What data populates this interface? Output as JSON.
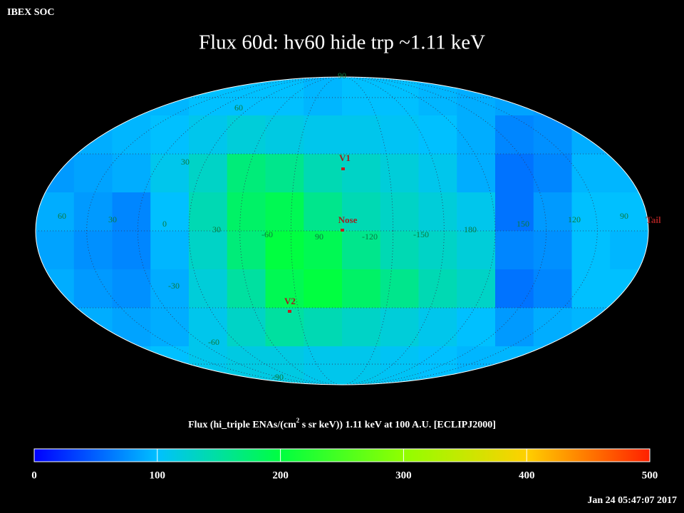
{
  "header": {
    "label": "IBEX SOC",
    "title": "Flux   60d: hv60 hide trp ~1.11 keV"
  },
  "map": {
    "grid_labels": [
      "90",
      "60",
      "30",
      "60",
      "30",
      "0",
      "30",
      "-60",
      "90",
      "-120",
      "-150",
      "180",
      "150",
      "120",
      "90",
      "-30",
      "-60",
      "-90"
    ],
    "markers": [
      {
        "label": "V1"
      },
      {
        "label": "Nose"
      },
      {
        "label": "V2"
      },
      {
        "label": "Tail"
      }
    ],
    "flux_grid": [
      [
        90,
        90,
        95,
        95,
        100,
        100,
        100,
        95,
        100,
        100,
        95,
        90,
        85,
        80,
        85,
        90
      ],
      [
        85,
        90,
        95,
        100,
        110,
        120,
        115,
        110,
        110,
        105,
        100,
        90,
        70,
        75,
        90,
        90
      ],
      [
        80,
        85,
        90,
        110,
        130,
        170,
        160,
        140,
        130,
        120,
        110,
        90,
        60,
        70,
        95,
        95
      ],
      [
        90,
        80,
        70,
        100,
        140,
        180,
        190,
        160,
        140,
        130,
        120,
        110,
        60,
        80,
        100,
        100
      ],
      [
        85,
        75,
        70,
        95,
        130,
        170,
        200,
        190,
        160,
        140,
        130,
        120,
        70,
        75,
        100,
        95
      ],
      [
        90,
        80,
        75,
        90,
        120,
        150,
        190,
        200,
        180,
        160,
        140,
        130,
        60,
        70,
        100,
        100
      ],
      [
        95,
        90,
        85,
        90,
        110,
        130,
        150,
        140,
        130,
        120,
        110,
        100,
        80,
        90,
        95,
        95
      ],
      [
        95,
        95,
        95,
        100,
        110,
        115,
        115,
        110,
        110,
        105,
        100,
        95,
        95,
        95,
        95,
        95
      ]
    ]
  },
  "colorbar": {
    "title_before": "Flux (hi_triple ENAs/(cm",
    "title_sup": "2",
    "title_after": " s sr keV))  1.11 keV at 100 A.U. [ECLIPJ2000]",
    "lim": [
      0,
      500
    ],
    "ticks": [
      0,
      100,
      200,
      300,
      400,
      500
    ],
    "colors": [
      "#0000ff",
      "#00c0ff",
      "#00ff40",
      "#90ff00",
      "#ffd000",
      "#ff2000"
    ]
  },
  "timestamp": "Jan 24 05:47:07 2017"
}
